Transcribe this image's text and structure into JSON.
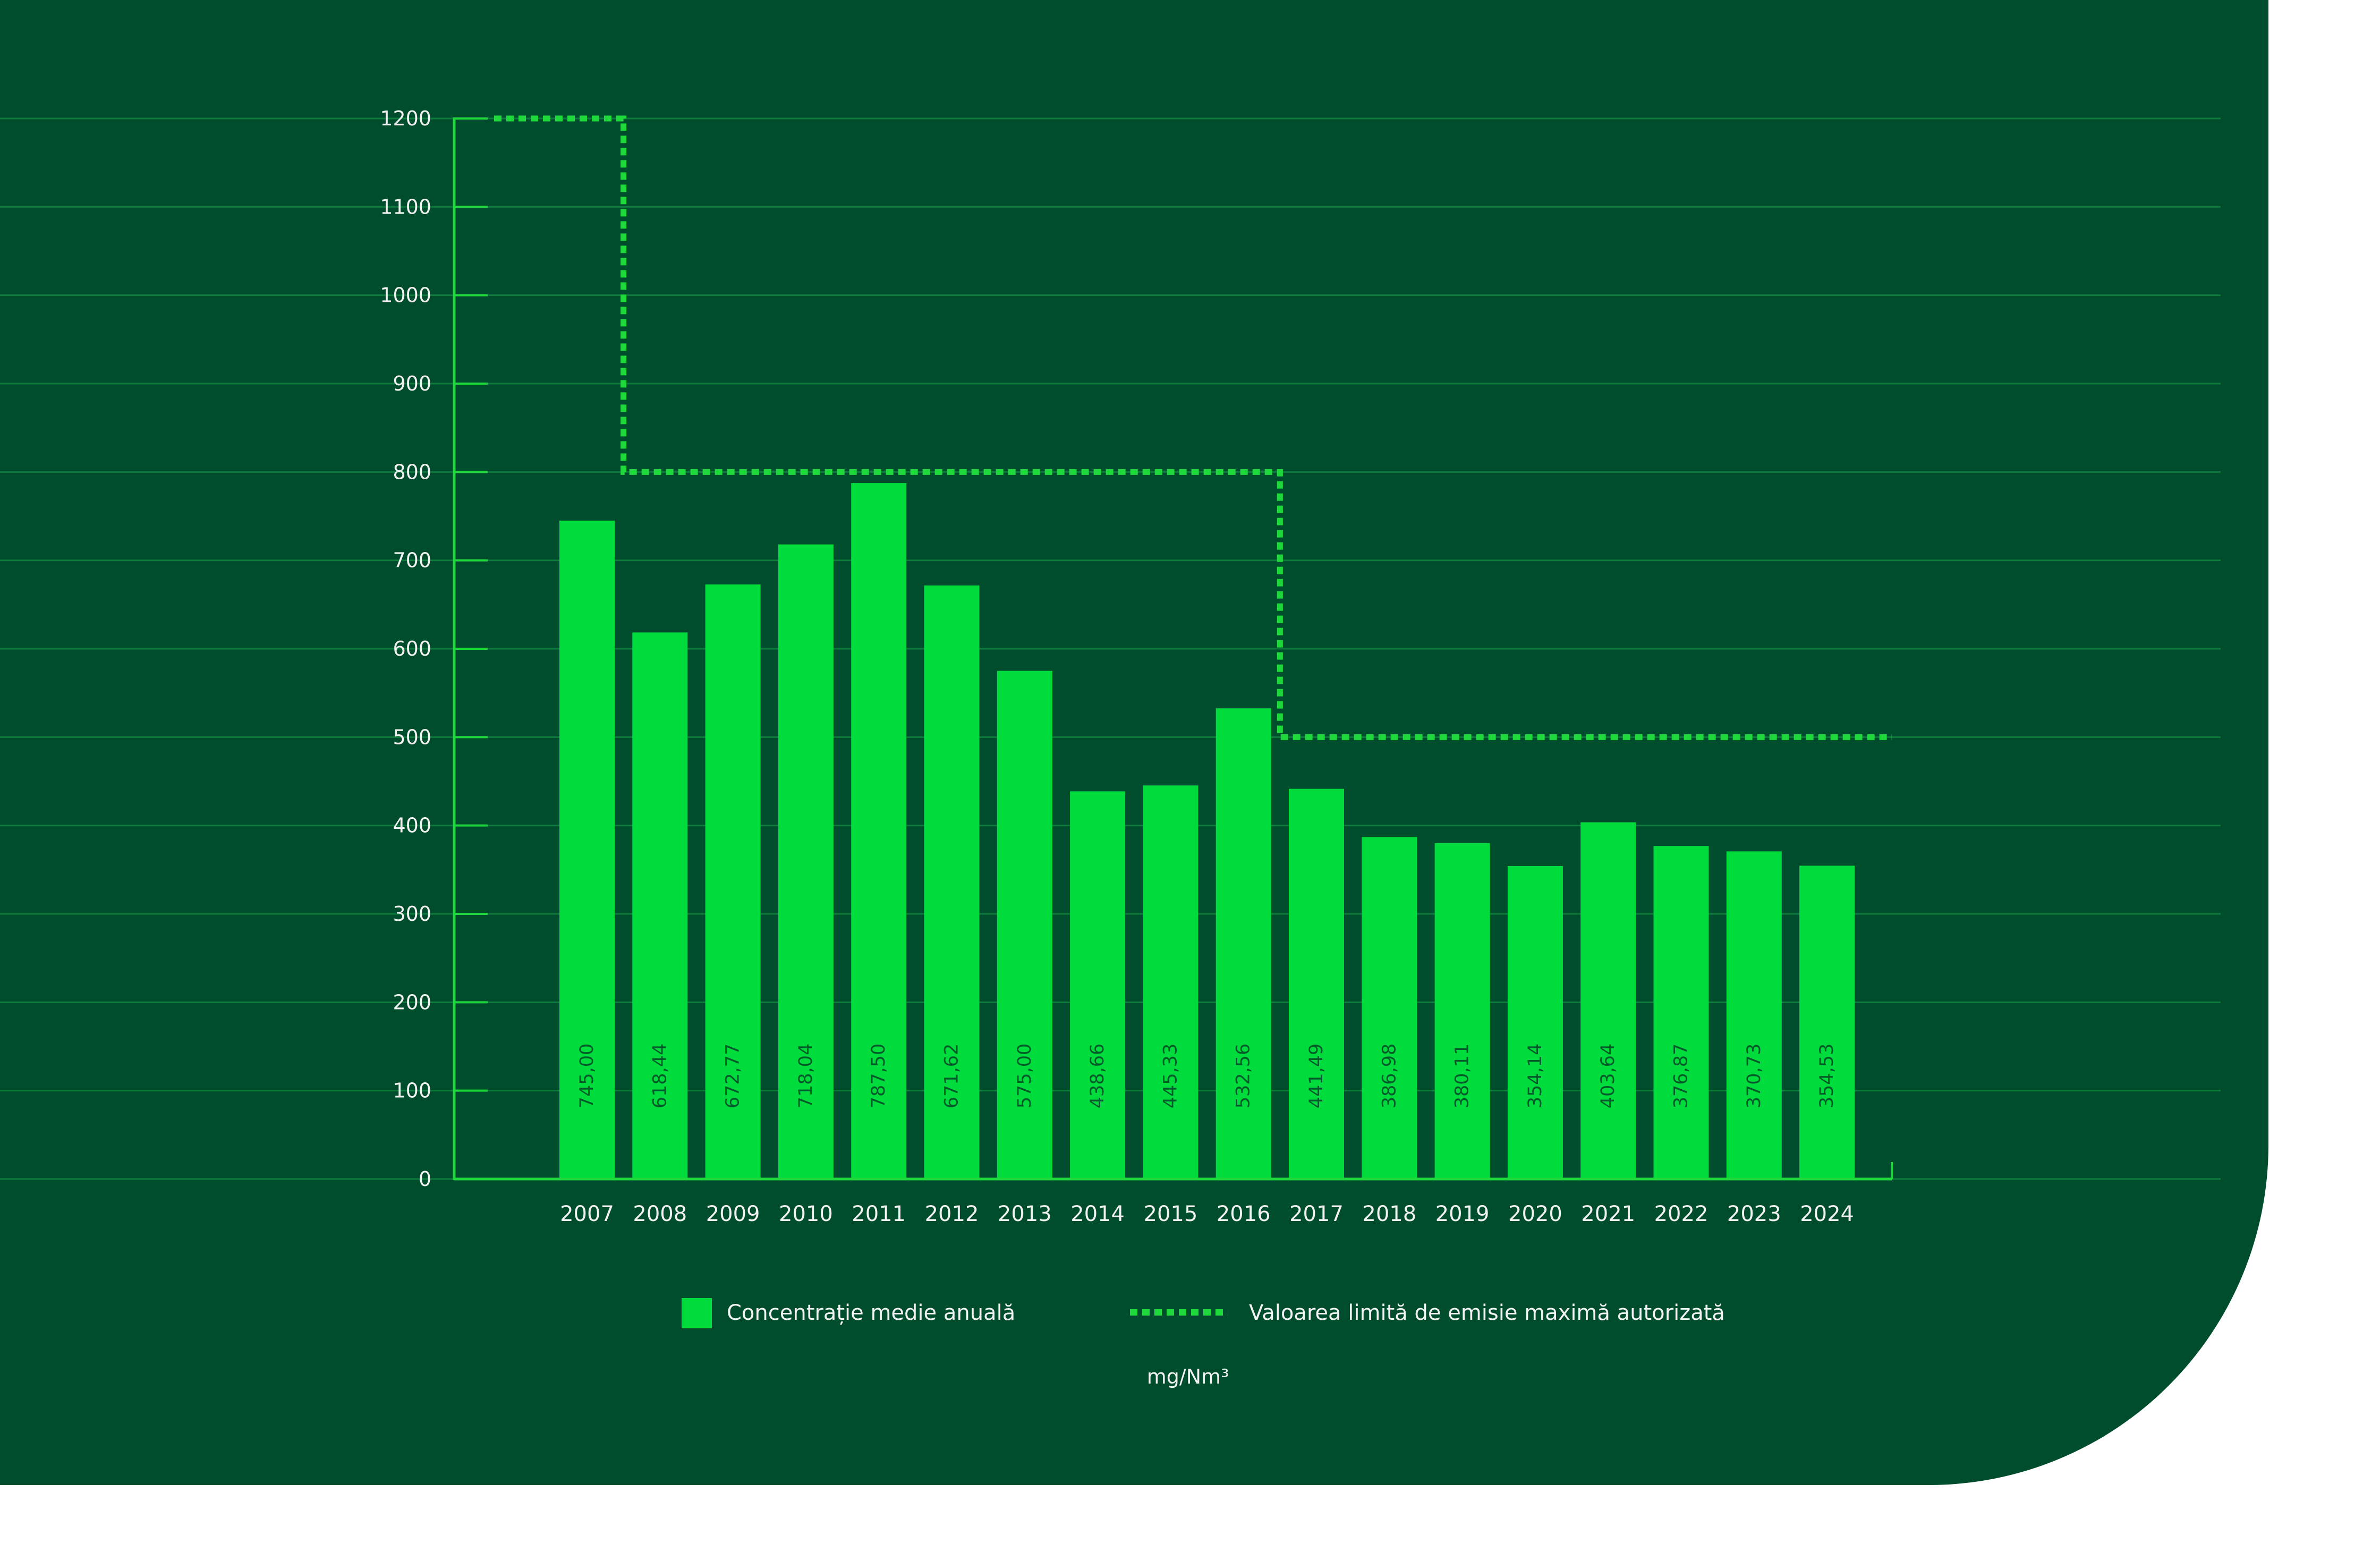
{
  "colors": {
    "panel": "#004d2d",
    "bar": "#00dc3c",
    "limit_line": "#1ed83c",
    "grid": "#0e7a3c",
    "axis": "#1fd83c",
    "tick_text": "#f2f2f2",
    "bar_label_text": "#005a2a"
  },
  "chart_data": {
    "type": "bar",
    "categories": [
      "2007",
      "2008",
      "2009",
      "2010",
      "2011",
      "2012",
      "2013",
      "2014",
      "2015",
      "2016",
      "2017",
      "2018",
      "2019",
      "2020",
      "2021",
      "2022",
      "2023",
      "2024"
    ],
    "series": [
      {
        "name": "Concentrație medie anuală",
        "values": [
          745.0,
          618.44,
          672.77,
          718.04,
          787.5,
          671.62,
          575.0,
          438.66,
          445.33,
          532.56,
          441.49,
          386.98,
          380.11,
          354.14,
          403.64,
          376.87,
          370.73,
          354.53
        ],
        "labels": [
          "745,00",
          "618,44",
          "672,77",
          "718,04",
          "787,50",
          "671,62",
          "575,00",
          "438,66",
          "445,33",
          "532,56",
          "441,49",
          "386,98",
          "380,11",
          "354,14",
          "403,64",
          "376,87",
          "370,73",
          "354,53"
        ]
      },
      {
        "name": "Valoarea limită de emisie maximă autorizată",
        "type": "step",
        "values": [
          1200,
          800,
          800,
          800,
          800,
          800,
          800,
          800,
          800,
          800,
          500,
          500,
          500,
          500,
          500,
          500,
          500,
          500
        ]
      }
    ],
    "ylim": [
      0,
      1200
    ],
    "yticks": [
      "0",
      "100",
      "200",
      "300",
      "400",
      "500",
      "600",
      "700",
      "800",
      "900",
      "1000",
      "1100",
      "1200"
    ],
    "unit": "mg/Nm³",
    "grid": true,
    "legend_position": "bottom"
  }
}
